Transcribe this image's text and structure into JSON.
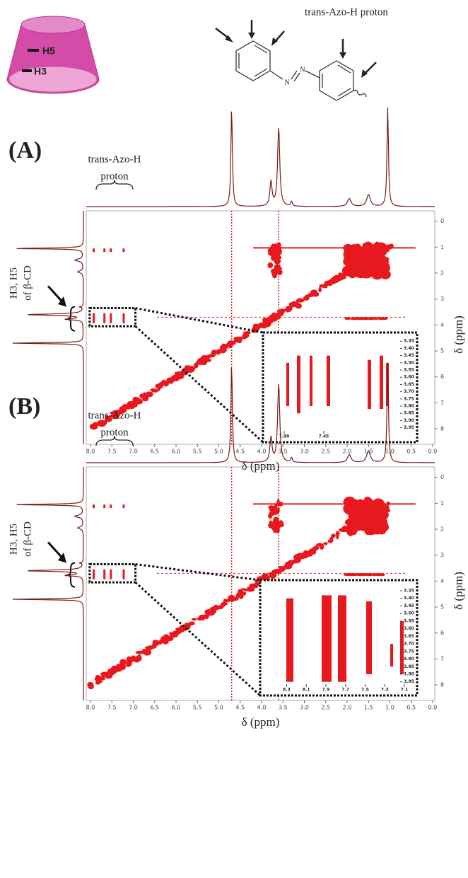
{
  "cartoon": {
    "labels": [
      "H5",
      "H3"
    ]
  },
  "molecule": {
    "label": "trans-Azo-H proton",
    "atom": "N"
  },
  "panels": [
    {
      "label": "(A)",
      "peak_label": [
        "trans-Azo-H",
        "proton"
      ],
      "side_label": [
        "H3, H5",
        "of β-CD"
      ],
      "xlabel": "δ (ppm)",
      "ylabel": "δ (ppm)",
      "xlim": [
        8.1,
        -0.05
      ],
      "ylim": [
        -0.4,
        8.6
      ],
      "xticks": [
        {
          "value": 8,
          "label": "8.0"
        },
        7.5,
        {
          "value": 7,
          "label": "7.0"
        },
        6.5,
        {
          "value": 6,
          "label": "6.0"
        },
        5.5,
        {
          "value": 5,
          "label": "5.0"
        },
        4.5,
        {
          "value": 4,
          "label": "4.0"
        },
        3.5,
        {
          "value": 3,
          "label": "3.0"
        },
        2.5,
        {
          "value": 2,
          "label": "2.0"
        },
        1.5,
        {
          "value": 1,
          "label": "1.0"
        },
        0.5,
        {
          "value": 0,
          "label": "0.0"
        }
      ],
      "yticks": [
        0,
        1,
        2,
        3,
        4,
        5,
        6,
        7,
        8
      ],
      "inset": {
        "xlim": [
          8.14,
          6.39
        ],
        "ylim": [
          3.29,
          4.05
        ],
        "xticks": [
          {
            "value": 7.9,
            "label": "7.90"
          },
          7.45
        ],
        "yticks": [
          3.35,
          {
            "value": 3.4,
            "label": "3.40"
          },
          3.45,
          {
            "value": 3.5,
            "label": "3.50"
          },
          3.55,
          {
            "value": 3.6,
            "label": "3.60"
          },
          3.65,
          {
            "value": 3.7,
            "label": "3.70"
          },
          3.75,
          {
            "value": 3.8,
            "label": "3.80"
          },
          3.85,
          {
            "value": 3.9,
            "label": "3.90"
          },
          3.95
        ]
      }
    },
    {
      "label": "(B)",
      "peak_label": [
        "trans-Azo-H",
        "proton"
      ],
      "side_label": [
        "H3, H5",
        "of β-CD"
      ],
      "xlabel": "δ (ppm)",
      "ylabel": "δ (ppm)",
      "xlim": [
        8.1,
        -0.05
      ],
      "ylim": [
        -0.4,
        8.6
      ],
      "xticks": [
        {
          "value": 8,
          "label": "8.0"
        },
        7.5,
        {
          "value": 7,
          "label": "7.0"
        },
        6.5,
        {
          "value": 6,
          "label": "6.0"
        },
        5.5,
        {
          "value": 5,
          "label": "5.0"
        },
        4.5,
        {
          "value": 4,
          "label": "4.0"
        },
        3.5,
        {
          "value": 3,
          "label": "3.0"
        },
        2.5,
        {
          "value": 2,
          "label": "2.0"
        },
        1.5,
        {
          "value": 1,
          "label": "1.0"
        },
        0.5,
        {
          "value": 0,
          "label": "0.0"
        }
      ],
      "yticks": [
        0,
        1,
        2,
        3,
        4,
        5,
        6,
        7,
        8
      ],
      "inset": {
        "xlim": [
          8.57,
          6.97
        ],
        "ylim": [
          3.28,
          4.04
        ],
        "xticks": [
          8.3,
          8.1,
          7.9,
          7.7,
          7.5,
          7.3,
          7.1
        ],
        "yticks": [
          3.35,
          {
            "value": 3.4,
            "label": "3.40"
          },
          3.45,
          {
            "value": 3.5,
            "label": "3.50"
          },
          3.55,
          {
            "value": 3.6,
            "label": "3.60"
          },
          3.65,
          {
            "value": 3.7,
            "label": "3.70"
          },
          3.75,
          {
            "value": 3.8,
            "label": "3.80"
          },
          3.85,
          {
            "value": 3.9,
            "label": "3.90"
          },
          3.95
        ]
      }
    }
  ]
}
